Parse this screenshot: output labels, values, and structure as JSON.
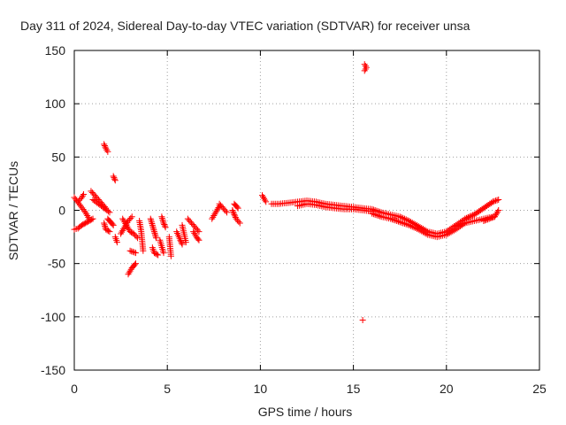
{
  "chart_data": {
    "type": "scatter",
    "title": "Day 311 of 2024, Sidereal Day-to-day VTEC variation (SDTVAR) for receiver unsa",
    "xlabel": "GPS time / hours",
    "ylabel": "SDTVAR / TECUs",
    "xlim": [
      0,
      25
    ],
    "ylim": [
      -150,
      150
    ],
    "xticks": [
      0,
      5,
      10,
      15,
      20,
      25
    ],
    "yticks": [
      -150,
      -100,
      -50,
      0,
      50,
      100,
      150
    ],
    "xtick_labels": [
      "0",
      "5",
      "10",
      "15",
      "20",
      "25"
    ],
    "ytick_labels": [
      "-150",
      "-100",
      "-50",
      "0",
      "50",
      "100",
      "150"
    ],
    "grid": true,
    "marker": "+",
    "series": [
      {
        "name": "SDTVAR",
        "color": "#ff0000",
        "segments": [
          {
            "x": [
              0.0,
              0.3,
              0.6,
              0.8
            ],
            "y": [
              12,
              5,
              -2,
              -8
            ]
          },
          {
            "x": [
              0.0,
              0.2,
              0.4,
              0.6,
              0.8,
              1.0
            ],
            "y": [
              -18,
              -17,
              -14,
              -12,
              -10,
              -8
            ]
          },
          {
            "x": [
              0.2,
              0.4,
              0.5
            ],
            "y": [
              8,
              12,
              15
            ]
          },
          {
            "x": [
              0.9,
              1.1,
              1.3,
              1.5,
              1.7
            ],
            "y": [
              18,
              14,
              10,
              6,
              2
            ]
          },
          {
            "x": [
              1.0,
              1.3,
              1.6,
              1.9
            ],
            "y": [
              10,
              6,
              2,
              -2
            ]
          },
          {
            "x": [
              1.6,
              1.7,
              1.8
            ],
            "y": [
              62,
              58,
              55
            ]
          },
          {
            "x": [
              2.1,
              2.2
            ],
            "y": [
              32,
              28
            ]
          },
          {
            "x": [
              1.8,
              1.9,
              2.0,
              2.1
            ],
            "y": [
              -8,
              -10,
              -12,
              -14
            ]
          },
          {
            "x": [
              1.6,
              1.7,
              1.9
            ],
            "y": [
              -12,
              -18,
              -20
            ]
          },
          {
            "x": [
              2.2,
              2.3
            ],
            "y": [
              -25,
              -30
            ]
          },
          {
            "x": [
              2.6,
              2.8,
              3.0,
              3.2,
              3.4
            ],
            "y": [
              -8,
              -14,
              -20,
              -22,
              -26
            ]
          },
          {
            "x": [
              2.5,
              2.7,
              2.9,
              3.1
            ],
            "y": [
              -22,
              -16,
              -10,
              -6
            ]
          },
          {
            "x": [
              2.9,
              3.0,
              3.1,
              3.2,
              3.3
            ],
            "y": [
              -60,
              -57,
              -54,
              -52,
              -50
            ]
          },
          {
            "x": [
              3.0,
              3.3
            ],
            "y": [
              -38,
              -40
            ]
          },
          {
            "x": [
              3.5,
              3.6,
              3.7
            ],
            "y": [
              -10,
              -20,
              -38
            ]
          },
          {
            "x": [
              4.1,
              4.2,
              4.3,
              4.4
            ],
            "y": [
              -8,
              -14,
              -20,
              -26
            ]
          },
          {
            "x": [
              4.2,
              4.3,
              4.5
            ],
            "y": [
              -35,
              -40,
              -42
            ]
          },
          {
            "x": [
              4.7,
              4.8,
              4.9
            ],
            "y": [
              -6,
              -12,
              -16
            ]
          },
          {
            "x": [
              4.6,
              4.8
            ],
            "y": [
              -28,
              -40
            ]
          },
          {
            "x": [
              5.1,
              5.2
            ],
            "y": [
              -25,
              -43
            ]
          },
          {
            "x": [
              5.5,
              5.7,
              5.8
            ],
            "y": [
              -20,
              -28,
              -32
            ]
          },
          {
            "x": [
              5.8,
              6.0
            ],
            "y": [
              -14,
              -30
            ]
          },
          {
            "x": [
              6.1,
              6.3,
              6.5,
              6.7
            ],
            "y": [
              -8,
              -12,
              -16,
              -20
            ]
          },
          {
            "x": [
              6.4,
              6.6,
              6.7
            ],
            "y": [
              -20,
              -26,
              -28
            ]
          },
          {
            "x": [
              7.4,
              7.6,
              7.8
            ],
            "y": [
              -8,
              -2,
              4
            ]
          },
          {
            "x": [
              7.8,
              8.0,
              8.2
            ],
            "y": [
              6,
              2,
              -2
            ]
          },
          {
            "x": [
              8.5,
              8.6,
              8.7,
              8.9
            ],
            "y": [
              0,
              -4,
              -8,
              -12
            ]
          },
          {
            "x": [
              8.6,
              8.7,
              8.8
            ],
            "y": [
              6,
              4,
              2
            ]
          },
          {
            "x": [
              10.1,
              10.2,
              10.3
            ],
            "y": [
              14,
              11,
              8
            ]
          },
          {
            "x": [
              10.6,
              11.0,
              11.5,
              12.0,
              12.5,
              13.0,
              13.5,
              14.0,
              14.5,
              15.0,
              15.5,
              16.0,
              16.5,
              17.0,
              17.5,
              18.0,
              18.5,
              19.0,
              19.5,
              20.0,
              20.5,
              21.0,
              21.5,
              22.0,
              22.5
            ],
            "y": [
              6,
              6,
              7,
              8,
              9,
              8,
              6,
              5,
              4,
              3,
              2,
              1,
              -2,
              -4,
              -6,
              -10,
              -15,
              -20,
              -22,
              -20,
              -14,
              -8,
              -4,
              2,
              8
            ]
          },
          {
            "x": [
              12.0,
              12.5,
              13.0,
              13.5,
              14.0,
              14.5,
              15.0,
              15.5,
              16.0
            ],
            "y": [
              4,
              6,
              5,
              3,
              2,
              1,
              1,
              0,
              -1
            ]
          },
          {
            "x": [
              16.0,
              16.5,
              17.0,
              17.5,
              18.0,
              18.5,
              19.0,
              19.5,
              20.0,
              20.5,
              21.0
            ],
            "y": [
              -3,
              -6,
              -8,
              -11,
              -14,
              -18,
              -23,
              -25,
              -23,
              -18,
              -12
            ]
          },
          {
            "x": [
              20.5,
              21.0,
              21.5,
              22.0,
              22.5
            ],
            "y": [
              -15,
              -12,
              -10,
              -8,
              -6
            ]
          },
          {
            "x": [
              21.0,
              21.5,
              22.0,
              22.5,
              22.8
            ],
            "y": [
              -8,
              -4,
              2,
              8,
              10
            ]
          },
          {
            "x": [
              22.0,
              22.3,
              22.6,
              22.8
            ],
            "y": [
              -10,
              -8,
              -6,
              0
            ]
          },
          {
            "x": [
              15.6,
              15.7,
              15.6
            ],
            "y": [
              137,
              134,
              131
            ]
          },
          {
            "x": [
              15.5
            ],
            "y": [
              -103
            ]
          }
        ]
      }
    ]
  }
}
